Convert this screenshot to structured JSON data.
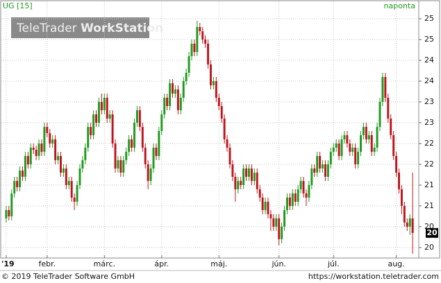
{
  "chart_data": {
    "type": "candlestick",
    "symbol": "UG [15]",
    "interval": "naponta",
    "watermark_brand": "TeleTrader",
    "watermark_product": "WorkStation",
    "footer_left": "© 2019 TeleTrader Software GmbH",
    "footer_right": "https://workstation.teletrader.com",
    "up_color": "#1e9a1e",
    "down_color": "#c0141c",
    "grid": true,
    "xlim": [
      -1,
      151
    ],
    "xticks": [
      {
        "value": 0,
        "label": "'19"
      },
      {
        "value": 15,
        "label": "febr."
      },
      {
        "value": 36,
        "label": "márc."
      },
      {
        "value": 57,
        "label": "ápr."
      },
      {
        "value": 78,
        "label": "máj."
      },
      {
        "value": 100,
        "label": "jún."
      },
      {
        "value": 120,
        "label": "júl."
      },
      {
        "value": 143,
        "label": "aug."
      }
    ],
    "ylim": [
      19.78,
      25.65
    ],
    "yticks": [
      {
        "value": 25.5,
        "label": "25"
      },
      {
        "value": 25,
        "label": "25"
      },
      {
        "value": 24.5,
        "label": "24"
      },
      {
        "value": 24,
        "label": "24"
      },
      {
        "value": 23.5,
        "label": "23"
      },
      {
        "value": 23,
        "label": "23"
      },
      {
        "value": 22.5,
        "label": "22"
      },
      {
        "value": 22,
        "label": "22"
      },
      {
        "value": 21.5,
        "label": "21"
      },
      {
        "value": 21,
        "label": "21"
      },
      {
        "value": 20.5,
        "label": "20"
      },
      {
        "value": 20,
        "label": "20"
      }
    ],
    "last_price": {
      "value": 20.35,
      "label": "20"
    },
    "open": [
      20.7,
      20.9,
      20.75,
      21.3,
      21.6,
      21.45,
      21.85,
      21.7,
      22.2,
      22.0,
      22.4,
      22.35,
      22.2,
      22.5,
      22.3,
      22.9,
      22.75,
      22.5,
      22.6,
      22.1,
      22.2,
      21.8,
      21.9,
      21.5,
      21.6,
      21.2,
      21.1,
      21.5,
      21.9,
      22.1,
      22.4,
      22.9,
      22.7,
      23.2,
      23.0,
      23.5,
      23.3,
      23.6,
      23.1,
      23.2,
      22.5,
      21.9,
      22.1,
      21.8,
      22.1,
      22.3,
      22.6,
      22.4,
      23.0,
      23.3,
      22.9,
      22.4,
      22.0,
      21.6,
      21.9,
      22.4,
      22.2,
      22.8,
      23.2,
      23.6,
      23.4,
      23.95,
      23.7,
      23.8,
      23.3,
      23.6,
      24.0,
      24.2,
      24.6,
      24.9,
      24.7,
      25.3,
      25.2,
      25.0,
      24.9,
      24.4,
      23.9,
      24.0,
      23.6,
      23.4,
      23.1,
      22.6,
      22.4,
      22.0,
      21.7,
      21.4,
      21.6,
      21.5,
      21.9,
      21.7,
      21.9,
      21.6,
      21.8,
      21.4,
      21.2,
      20.9,
      21.1,
      20.8,
      20.7,
      20.5,
      20.7,
      20.2,
      20.5,
      20.9,
      21.2,
      21.0,
      21.3,
      21.1,
      21.4,
      21.6,
      21.3,
      21.2,
      21.5,
      21.9,
      21.8,
      22.2,
      21.9,
      22.0,
      21.7,
      22.0,
      22.3,
      22.4,
      22.5,
      22.2,
      22.6,
      22.7,
      22.5,
      22.3,
      22.4,
      22.0,
      22.3,
      22.7,
      22.9,
      22.6,
      22.7,
      22.3,
      22.4,
      22.9,
      23.5,
      24.1,
      23.6,
      23.1,
      22.7,
      22.2,
      21.8,
      21.4,
      21.0,
      20.6,
      20.5,
      20.7
    ],
    "high": [
      21.0,
      21.0,
      21.4,
      21.7,
      21.7,
      21.95,
      21.95,
      22.3,
      22.3,
      22.5,
      22.5,
      22.45,
      22.6,
      22.6,
      23.0,
      23.0,
      22.85,
      22.7,
      22.7,
      22.3,
      22.3,
      22.0,
      22.0,
      21.7,
      21.7,
      21.3,
      21.6,
      22.0,
      22.2,
      22.5,
      23.0,
      23.0,
      23.3,
      23.3,
      23.6,
      23.7,
      23.7,
      23.7,
      23.3,
      23.3,
      22.6,
      22.2,
      22.2,
      22.2,
      22.4,
      22.7,
      22.7,
      23.1,
      23.4,
      23.4,
      23.0,
      22.5,
      22.1,
      22.0,
      22.5,
      22.5,
      22.9,
      23.3,
      23.7,
      23.7,
      24.05,
      24.05,
      23.9,
      23.9,
      23.7,
      24.1,
      24.3,
      24.7,
      25.0,
      25.0,
      25.45,
      25.4,
      25.3,
      25.1,
      25.0,
      24.5,
      24.1,
      24.1,
      23.7,
      23.5,
      23.2,
      22.7,
      22.5,
      22.1,
      21.8,
      21.7,
      21.7,
      22.0,
      22.0,
      22.0,
      22.0,
      21.9,
      21.9,
      21.5,
      21.3,
      21.2,
      21.2,
      20.9,
      20.8,
      20.8,
      20.8,
      20.6,
      21.0,
      21.3,
      21.3,
      21.4,
      21.4,
      21.5,
      21.7,
      21.7,
      21.4,
      21.6,
      22.0,
      22.0,
      22.3,
      22.3,
      22.1,
      22.1,
      22.1,
      22.4,
      22.5,
      22.6,
      22.6,
      22.7,
      22.8,
      22.8,
      22.6,
      22.5,
      22.5,
      22.4,
      22.8,
      23.0,
      23.0,
      22.8,
      22.8,
      22.5,
      23.0,
      23.6,
      24.2,
      24.2,
      23.7,
      23.2,
      22.8,
      22.3,
      21.9,
      21.5,
      21.1,
      20.7,
      20.8,
      21.8
    ],
    "low": [
      20.6,
      20.65,
      20.65,
      21.2,
      21.35,
      21.35,
      21.6,
      21.6,
      21.9,
      21.9,
      22.25,
      22.1,
      22.1,
      22.2,
      22.2,
      22.65,
      22.4,
      22.4,
      22.0,
      22.0,
      21.7,
      21.7,
      21.4,
      21.4,
      21.1,
      20.9,
      21.0,
      21.4,
      21.8,
      22.0,
      22.3,
      22.6,
      22.6,
      22.9,
      22.9,
      23.2,
      23.2,
      23.0,
      23.0,
      22.4,
      21.8,
      21.8,
      21.7,
      21.7,
      22.0,
      22.2,
      22.3,
      22.3,
      22.9,
      22.8,
      22.3,
      21.9,
      21.4,
      21.5,
      21.8,
      22.1,
      22.1,
      22.7,
      23.1,
      23.3,
      23.3,
      23.6,
      23.6,
      23.2,
      23.2,
      23.5,
      23.9,
      24.1,
      24.5,
      24.6,
      24.6,
      25.1,
      24.9,
      24.8,
      24.3,
      23.8,
      23.8,
      23.5,
      23.3,
      23.0,
      22.5,
      22.3,
      21.9,
      21.6,
      21.1,
      21.3,
      21.4,
      21.4,
      21.6,
      21.6,
      21.5,
      21.5,
      21.3,
      21.1,
      20.8,
      20.8,
      20.7,
      20.4,
      20.4,
      20.4,
      20.05,
      20.1,
      20.4,
      20.8,
      20.9,
      20.9,
      21.0,
      21.0,
      21.3,
      21.2,
      21.0,
      21.1,
      21.4,
      21.7,
      21.7,
      21.8,
      21.8,
      21.6,
      21.6,
      21.9,
      22.2,
      22.3,
      22.1,
      22.1,
      22.5,
      22.4,
      22.2,
      22.2,
      21.9,
      21.9,
      22.2,
      22.6,
      22.5,
      22.5,
      22.2,
      22.2,
      22.3,
      22.8,
      23.4,
      23.5,
      23.0,
      22.6,
      22.1,
      21.7,
      21.3,
      20.8,
      20.5,
      20.4,
      20.3,
      19.85
    ],
    "close": [
      20.9,
      20.75,
      21.3,
      21.6,
      21.45,
      21.85,
      21.7,
      22.2,
      22.0,
      22.4,
      22.35,
      22.2,
      22.5,
      22.3,
      22.9,
      22.75,
      22.5,
      22.6,
      22.1,
      22.2,
      21.8,
      21.9,
      21.5,
      21.6,
      21.2,
      21.1,
      21.5,
      21.9,
      22.1,
      22.4,
      22.9,
      22.7,
      23.2,
      23.0,
      23.5,
      23.3,
      23.6,
      23.1,
      23.2,
      22.5,
      21.9,
      22.1,
      21.8,
      22.1,
      22.3,
      22.6,
      22.4,
      23.0,
      23.3,
      22.9,
      22.4,
      22.0,
      21.6,
      21.9,
      22.4,
      22.2,
      22.8,
      23.2,
      23.6,
      23.4,
      23.95,
      23.7,
      23.8,
      23.3,
      23.6,
      24.0,
      24.2,
      24.6,
      24.9,
      24.7,
      25.3,
      25.2,
      25.0,
      24.9,
      24.4,
      23.9,
      24.0,
      23.6,
      23.4,
      23.1,
      22.6,
      22.4,
      22.0,
      21.7,
      21.4,
      21.6,
      21.5,
      21.9,
      21.7,
      21.9,
      21.6,
      21.8,
      21.4,
      21.2,
      20.9,
      21.1,
      20.8,
      20.7,
      20.5,
      20.7,
      20.2,
      20.5,
      20.9,
      21.2,
      21.0,
      21.3,
      21.1,
      21.4,
      21.6,
      21.3,
      21.2,
      21.5,
      21.9,
      21.8,
      22.2,
      21.9,
      22.0,
      21.7,
      22.0,
      22.3,
      22.4,
      22.5,
      22.2,
      22.6,
      22.7,
      22.5,
      22.3,
      22.4,
      22.0,
      22.3,
      22.7,
      22.9,
      22.6,
      22.7,
      22.3,
      22.4,
      22.9,
      23.5,
      24.1,
      23.6,
      23.1,
      22.7,
      22.2,
      21.8,
      21.4,
      21.0,
      20.6,
      20.5,
      20.7,
      20.35
    ]
  }
}
